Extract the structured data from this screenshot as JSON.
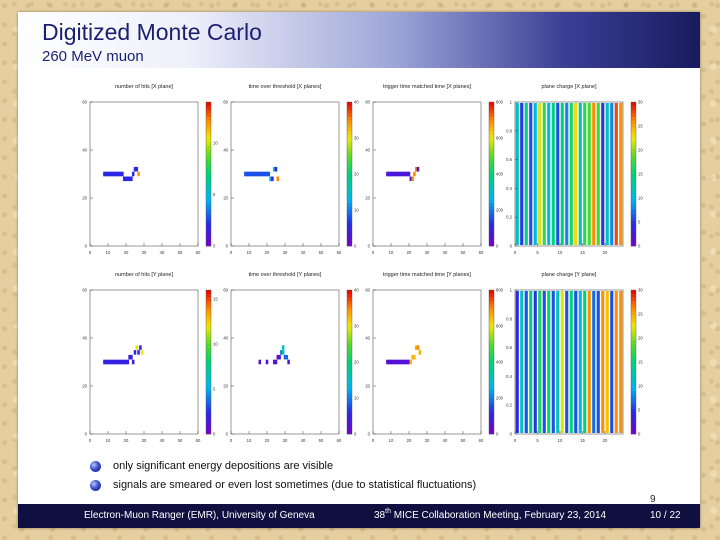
{
  "slide": {
    "title": "Digitized Monte Carlo",
    "subtitle": "260 MeV muon",
    "bullets": [
      "only significant energy depositions are visible",
      "signals are smeared or even lost sometimes (due to statistical fluctuations)"
    ],
    "page_number": "9",
    "footer": {
      "left": "Electron-Muon Ranger (EMR), University of Geneva",
      "mid_ordinal": "38",
      "mid_sup": "th",
      "mid_rest": " MICE Collaboration Meeting, February 23, 2014",
      "right": "10 / 22"
    }
  },
  "chart_data": [
    {
      "type": "heatmap",
      "title": "number of hits [X plane]",
      "x": [
        8,
        9,
        10,
        11,
        12,
        13,
        14,
        15,
        16,
        17,
        18,
        19,
        20,
        21,
        22,
        23,
        24,
        25,
        26,
        27
      ],
      "y": [
        30,
        30,
        30,
        30,
        30,
        30,
        30,
        30,
        30,
        30,
        30,
        28,
        28,
        28,
        28,
        28,
        30,
        32,
        32,
        30
      ],
      "z": [
        2,
        2,
        2,
        2,
        2,
        2,
        2,
        2,
        2,
        2,
        2,
        2,
        2,
        2,
        2,
        2,
        2,
        2,
        2,
        12
      ],
      "xlim": [
        0,
        60
      ],
      "ylim": [
        0,
        60
      ],
      "zlim": [
        0,
        14
      ]
    },
    {
      "type": "heatmap",
      "title": "time over threshold [X planes]",
      "x": [
        8,
        9,
        10,
        11,
        12,
        13,
        14,
        15,
        16,
        17,
        18,
        19,
        20,
        21,
        22,
        23,
        24,
        25,
        26
      ],
      "y": [
        30,
        30,
        30,
        30,
        30,
        30,
        30,
        30,
        30,
        30,
        30,
        30,
        30,
        30,
        28,
        28,
        32,
        32,
        28
      ],
      "z": [
        8,
        8,
        8,
        8,
        8,
        8,
        8,
        8,
        8,
        8,
        8,
        8,
        8,
        8,
        12,
        5,
        15,
        5,
        35
      ],
      "xlim": [
        0,
        60
      ],
      "ylim": [
        0,
        60
      ],
      "zlim": [
        0,
        40
      ]
    },
    {
      "type": "heatmap",
      "title": "trigger time matched time [X planes]",
      "x": [
        8,
        9,
        10,
        11,
        12,
        13,
        14,
        15,
        16,
        17,
        18,
        19,
        20,
        21,
        22,
        23,
        24,
        25
      ],
      "y": [
        30,
        30,
        30,
        30,
        30,
        30,
        30,
        30,
        30,
        30,
        30,
        30,
        30,
        28,
        28,
        30,
        32,
        32
      ],
      "z": [
        70,
        70,
        70,
        70,
        70,
        70,
        70,
        70,
        70,
        70,
        70,
        70,
        60,
        60,
        700,
        700,
        700,
        60
      ],
      "xlim": [
        0,
        60
      ],
      "ylim": [
        0,
        60
      ],
      "zlim": [
        0,
        800
      ]
    },
    {
      "type": "heatmap",
      "title": "plane charge [X plane]",
      "x": [
        1,
        2,
        3,
        4,
        5,
        6,
        7,
        8,
        9,
        10,
        11,
        12,
        13,
        14,
        15,
        16,
        17,
        18,
        19,
        20,
        21,
        22,
        23,
        24
      ],
      "z": [
        12,
        5,
        14,
        6,
        10,
        22,
        17,
        10,
        15,
        6,
        15,
        8,
        16,
        23,
        12,
        17,
        18,
        26,
        18,
        5,
        12,
        8,
        28,
        26
      ],
      "xlim": [
        0,
        24
      ],
      "ylim": [
        0,
        1
      ],
      "zlim": [
        0,
        30
      ]
    },
    {
      "type": "heatmap",
      "title": "number of hits [Y plane]",
      "x": [
        8,
        9,
        10,
        11,
        12,
        13,
        14,
        15,
        16,
        17,
        18,
        19,
        20,
        21,
        22,
        23,
        24,
        25,
        26,
        27,
        28,
        29
      ],
      "y": [
        30,
        30,
        30,
        30,
        30,
        30,
        30,
        30,
        30,
        30,
        30,
        30,
        30,
        30,
        32,
        32,
        30,
        34,
        36,
        34,
        36,
        34
      ],
      "z": [
        2,
        2,
        2,
        2,
        2,
        2,
        2,
        2,
        2,
        2,
        2,
        2,
        2,
        2,
        2,
        2,
        2,
        2,
        12,
        2,
        2,
        12
      ],
      "xlim": [
        0,
        60
      ],
      "ylim": [
        0,
        60
      ],
      "zlim": [
        0,
        16
      ]
    },
    {
      "type": "heatmap",
      "title": "time over threshold [Y planes]",
      "x": [
        16,
        20,
        24,
        25,
        26,
        27,
        28,
        29,
        29,
        30,
        31,
        32
      ],
      "y": [
        30,
        30,
        30,
        30,
        32,
        32,
        34,
        34,
        36,
        32,
        32,
        30
      ],
      "z": [
        3,
        3,
        3,
        3,
        3,
        3,
        9,
        16,
        16,
        9,
        9,
        3
      ],
      "xlim": [
        0,
        60
      ],
      "ylim": [
        0,
        60
      ],
      "zlim": [
        0,
        40
      ]
    },
    {
      "type": "heatmap",
      "title": "trigger time matched time [Y planes]",
      "x": [
        8,
        9,
        10,
        11,
        12,
        13,
        14,
        15,
        16,
        17,
        18,
        19,
        20,
        21,
        22,
        23,
        24,
        25,
        26
      ],
      "y": [
        30,
        30,
        30,
        30,
        30,
        30,
        30,
        30,
        30,
        30,
        30,
        30,
        30,
        30,
        32,
        32,
        36,
        36,
        34
      ],
      "z": [
        50,
        50,
        50,
        50,
        50,
        50,
        50,
        50,
        50,
        50,
        50,
        50,
        50,
        650,
        650,
        650,
        650,
        700,
        650
      ],
      "xlim": [
        0,
        60
      ],
      "ylim": [
        0,
        60
      ],
      "zlim": [
        0,
        800
      ]
    },
    {
      "type": "heatmap",
      "title": "plane charge [Y plane]",
      "x": [
        1,
        2,
        3,
        4,
        5,
        6,
        7,
        8,
        9,
        10,
        11,
        12,
        13,
        14,
        15,
        16,
        17,
        18,
        19,
        20,
        21,
        22,
        23,
        24
      ],
      "z": [
        4,
        12,
        6,
        14,
        5,
        16,
        6,
        15,
        6,
        12,
        22,
        6,
        15,
        6,
        10,
        15,
        26,
        7,
        6,
        26,
        24,
        6,
        26,
        26
      ],
      "xlim": [
        0,
        24
      ],
      "ylim": [
        0,
        1
      ],
      "zlim": [
        0,
        30
      ]
    }
  ]
}
